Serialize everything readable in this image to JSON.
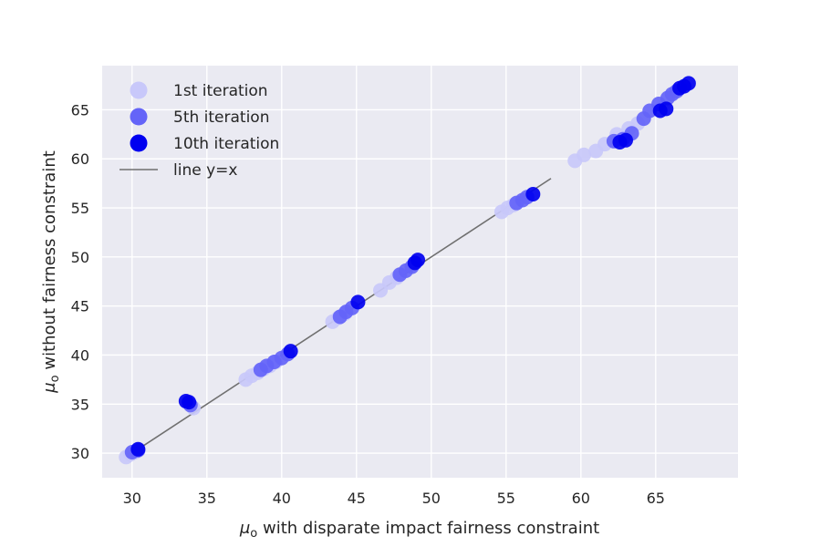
{
  "chart_data": {
    "type": "scatter",
    "xlabel_prefix": "μ",
    "xlabel_sub": "o",
    "xlabel_rest": " with disparate impact fairness constraint",
    "ylabel_prefix": "μ",
    "ylabel_sub": "o",
    "ylabel_rest": " without fairness constraint",
    "xlim": [
      28,
      70.5
    ],
    "ylim": [
      27.5,
      69.5
    ],
    "x_ticks": [
      30,
      35,
      40,
      45,
      50,
      55,
      60,
      65
    ],
    "y_ticks": [
      30,
      35,
      40,
      45,
      50,
      55,
      60,
      65
    ],
    "x_tick_labels": [
      "30",
      "35",
      "40",
      "45",
      "50",
      "55",
      "60",
      "65"
    ],
    "y_tick_labels": [
      "30",
      "35",
      "40",
      "45",
      "50",
      "55",
      "60",
      "65"
    ],
    "grid": true,
    "legend_position": "top-left",
    "background_color": "#eaeaf2",
    "grid_color": "#ffffff",
    "series": [
      {
        "name": "1st iteration",
        "color": "#c8c8fa",
        "points": [
          [
            29.6,
            29.6
          ],
          [
            29.9,
            29.9
          ],
          [
            30.2,
            30.1
          ],
          [
            34.1,
            34.6
          ],
          [
            37.6,
            37.5
          ],
          [
            38.0,
            37.9
          ],
          [
            38.4,
            38.2
          ],
          [
            38.8,
            38.6
          ],
          [
            39.2,
            38.9
          ],
          [
            39.6,
            39.3
          ],
          [
            43.4,
            43.4
          ],
          [
            43.8,
            43.8
          ],
          [
            44.2,
            44.2
          ],
          [
            46.6,
            46.6
          ],
          [
            47.2,
            47.4
          ],
          [
            47.7,
            47.9
          ],
          [
            54.7,
            54.6
          ],
          [
            55.1,
            55.0
          ],
          [
            55.5,
            55.3
          ],
          [
            59.6,
            59.8
          ],
          [
            60.2,
            60.4
          ],
          [
            61.0,
            60.8
          ],
          [
            61.6,
            61.5
          ],
          [
            62.4,
            62.5
          ],
          [
            63.2,
            63.1
          ],
          [
            63.8,
            63.6
          ]
        ]
      },
      {
        "name": "5th iteration",
        "color": "#6464f8",
        "points": [
          [
            30.0,
            30.1
          ],
          [
            30.4,
            30.3
          ],
          [
            33.9,
            34.9
          ],
          [
            38.6,
            38.5
          ],
          [
            39.0,
            38.9
          ],
          [
            39.5,
            39.3
          ],
          [
            40.0,
            39.7
          ],
          [
            40.4,
            40.1
          ],
          [
            43.9,
            43.9
          ],
          [
            44.3,
            44.4
          ],
          [
            44.7,
            44.8
          ],
          [
            47.9,
            48.2
          ],
          [
            48.3,
            48.6
          ],
          [
            48.7,
            49.0
          ],
          [
            55.7,
            55.5
          ],
          [
            56.1,
            55.8
          ],
          [
            56.4,
            56.1
          ],
          [
            62.2,
            61.8
          ],
          [
            62.8,
            62.0
          ],
          [
            63.4,
            62.6
          ],
          [
            64.2,
            64.1
          ],
          [
            64.6,
            64.9
          ],
          [
            65.2,
            65.6
          ],
          [
            65.8,
            66.2
          ],
          [
            66.1,
            66.6
          ],
          [
            66.4,
            66.9
          ]
        ]
      },
      {
        "name": "10th iteration",
        "color": "#0000f0",
        "points": [
          [
            30.4,
            30.4
          ],
          [
            33.6,
            35.3
          ],
          [
            33.8,
            35.2
          ],
          [
            40.6,
            40.4
          ],
          [
            45.1,
            45.4
          ],
          [
            48.9,
            49.4
          ],
          [
            49.1,
            49.7
          ],
          [
            56.8,
            56.4
          ],
          [
            62.6,
            61.7
          ],
          [
            63.0,
            61.9
          ],
          [
            65.3,
            64.9
          ],
          [
            65.7,
            65.1
          ],
          [
            66.6,
            67.2
          ],
          [
            66.9,
            67.4
          ],
          [
            67.2,
            67.7
          ]
        ]
      }
    ],
    "reference_line": {
      "name": "line y=x",
      "color": "#707070",
      "x": [
        30,
        58
      ],
      "y": [
        30,
        58
      ]
    }
  }
}
